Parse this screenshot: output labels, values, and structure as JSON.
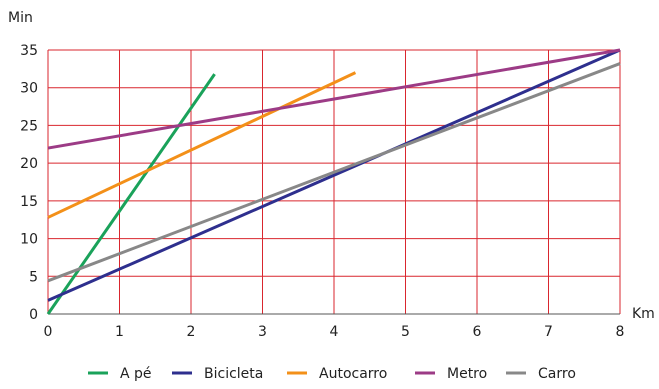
{
  "chart_data": {
    "type": "line",
    "xlabel": "Km",
    "ylabel": "Min",
    "xlim": [
      0,
      8
    ],
    "ylim": [
      0,
      35
    ],
    "x_ticks": [
      0,
      1,
      2,
      3,
      4,
      5,
      6,
      7,
      8
    ],
    "y_ticks": [
      0,
      5,
      10,
      15,
      20,
      25,
      30,
      35
    ],
    "grid": true,
    "grid_color": "#d9262e",
    "legend_position": "bottom",
    "series": [
      {
        "name": "A pé",
        "color": "#1aa25a",
        "x": [
          0,
          2.33
        ],
        "y": [
          0,
          31.8
        ]
      },
      {
        "name": "Bicicleta",
        "color": "#2e2f8e",
        "x": [
          0,
          8
        ],
        "y": [
          1.8,
          35
        ]
      },
      {
        "name": "Autocarro",
        "color": "#f39019",
        "x": [
          0,
          4.3
        ],
        "y": [
          12.8,
          32
        ]
      },
      {
        "name": "Metro",
        "color": "#9c3b86",
        "x": [
          0,
          8
        ],
        "y": [
          22,
          35
        ]
      },
      {
        "name": "Carro",
        "color": "#888888",
        "x": [
          0,
          8
        ],
        "y": [
          4.4,
          33.2
        ]
      }
    ]
  }
}
